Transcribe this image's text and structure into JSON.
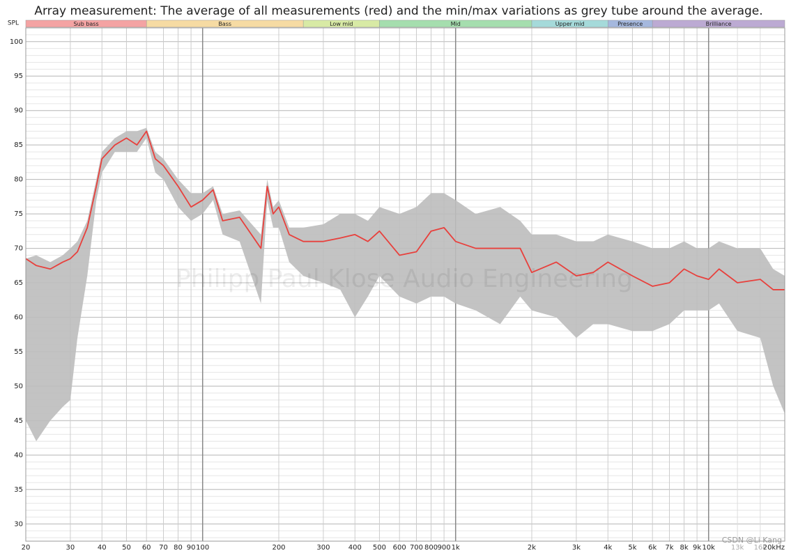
{
  "chart_data": {
    "type": "line",
    "title": "Array measurement: The average of all measurements (red) and the min/max variations as grey tube around the average.",
    "y_label": "SPL",
    "watermark": "Philipp Paul Klose Audio Engineering",
    "credit": "CSDN @Li Kang",
    "log_x": true,
    "grid": true,
    "y_minor_step": 1,
    "xlim": [
      20,
      20000
    ],
    "ylim": [
      27.5,
      102
    ],
    "yticks": [
      30,
      35,
      40,
      45,
      50,
      55,
      60,
      65,
      70,
      75,
      80,
      85,
      90,
      95,
      100
    ],
    "xticks": [
      20,
      30,
      40,
      50,
      60,
      70,
      80,
      90,
      100,
      200,
      300,
      400,
      500,
      600,
      700,
      800,
      900,
      {
        "value": 1000,
        "label": "1k"
      },
      {
        "value": 2000,
        "label": "2k"
      },
      {
        "value": 3000,
        "label": "3k"
      },
      {
        "value": 4000,
        "label": "4k"
      },
      {
        "value": 5000,
        "label": "5k"
      },
      {
        "value": 6000,
        "label": "6k"
      },
      {
        "value": 7000,
        "label": "7k"
      },
      {
        "value": 8000,
        "label": "8k"
      },
      {
        "value": 9000,
        "label": "9k"
      },
      {
        "value": 10000,
        "label": "10k"
      },
      {
        "value": 20000,
        "label": "20kHz"
      }
    ],
    "xticks_faint": [
      {
        "value": 13000,
        "label": "13k"
      },
      {
        "value": 16000,
        "label": "16k"
      }
    ],
    "bands": [
      {
        "label": "Sub bass",
        "from": 20,
        "to": 60,
        "color": "#f4a3a3"
      },
      {
        "label": "Bass",
        "from": 60,
        "to": 250,
        "color": "#f6dba3"
      },
      {
        "label": "Low mid",
        "from": 250,
        "to": 500,
        "color": "#d8eaa5"
      },
      {
        "label": "Mid",
        "from": 500,
        "to": 2000,
        "color": "#a5deae"
      },
      {
        "label": "Upper mid",
        "from": 2000,
        "to": 4000,
        "color": "#a5dada"
      },
      {
        "label": "Presence",
        "from": 4000,
        "to": 6000,
        "color": "#a5b8de"
      },
      {
        "label": "Brilliance",
        "from": 6000,
        "to": 20000,
        "color": "#bcaad3"
      }
    ],
    "x": [
      20,
      22,
      25,
      28,
      30,
      32,
      35,
      38,
      40,
      45,
      50,
      55,
      60,
      65,
      70,
      80,
      90,
      100,
      110,
      120,
      140,
      170,
      180,
      190,
      200,
      220,
      250,
      300,
      350,
      400,
      450,
      500,
      600,
      700,
      800,
      900,
      1000,
      1200,
      1500,
      1800,
      2000,
      2500,
      3000,
      3500,
      4000,
      5000,
      6000,
      7000,
      8000,
      9000,
      10000,
      11000,
      13000,
      16000,
      18000,
      20000
    ],
    "series": [
      {
        "color": "#e8403c",
        "values": [
          68.5,
          67.5,
          67,
          68,
          68.5,
          69.5,
          73,
          79,
          83,
          85,
          86,
          85,
          87,
          83,
          82,
          79,
          76,
          77,
          78.5,
          74,
          74.5,
          70,
          79,
          75,
          76,
          72,
          71,
          71,
          71.5,
          72,
          71,
          72.5,
          69,
          69.5,
          72.5,
          73,
          71,
          70,
          70,
          70,
          66.5,
          68,
          66,
          66.5,
          68,
          66,
          64.5,
          65,
          67,
          66,
          65.5,
          67,
          65,
          65.5,
          64,
          64
        ]
      }
    ],
    "band": {
      "color": "#bdbdbd",
      "lower": [
        45,
        42,
        45,
        47,
        48,
        57,
        66,
        77,
        81,
        84,
        84,
        84,
        86,
        81,
        80,
        76,
        74,
        75,
        77,
        72,
        71,
        62,
        77,
        73,
        73,
        68,
        66,
        65,
        64,
        60,
        63,
        66,
        63,
        62,
        63,
        63,
        62,
        61,
        59,
        63,
        61,
        60,
        57,
        59,
        59,
        58,
        58,
        59,
        61,
        61,
        61,
        62,
        58,
        57,
        50,
        46
      ],
      "upper": [
        68.5,
        69,
        68,
        69,
        70,
        71,
        74,
        80,
        84,
        86,
        87,
        87,
        87.5,
        84,
        83,
        80,
        78,
        78,
        79,
        75,
        75.5,
        72,
        80,
        76,
        77,
        73,
        73,
        73.5,
        75,
        75,
        74,
        76,
        75,
        76,
        78,
        78,
        77,
        75,
        76,
        74,
        72,
        72,
        71,
        71,
        72,
        71,
        70,
        70,
        71,
        70,
        70,
        71,
        70,
        70,
        67,
        66
      ]
    }
  }
}
